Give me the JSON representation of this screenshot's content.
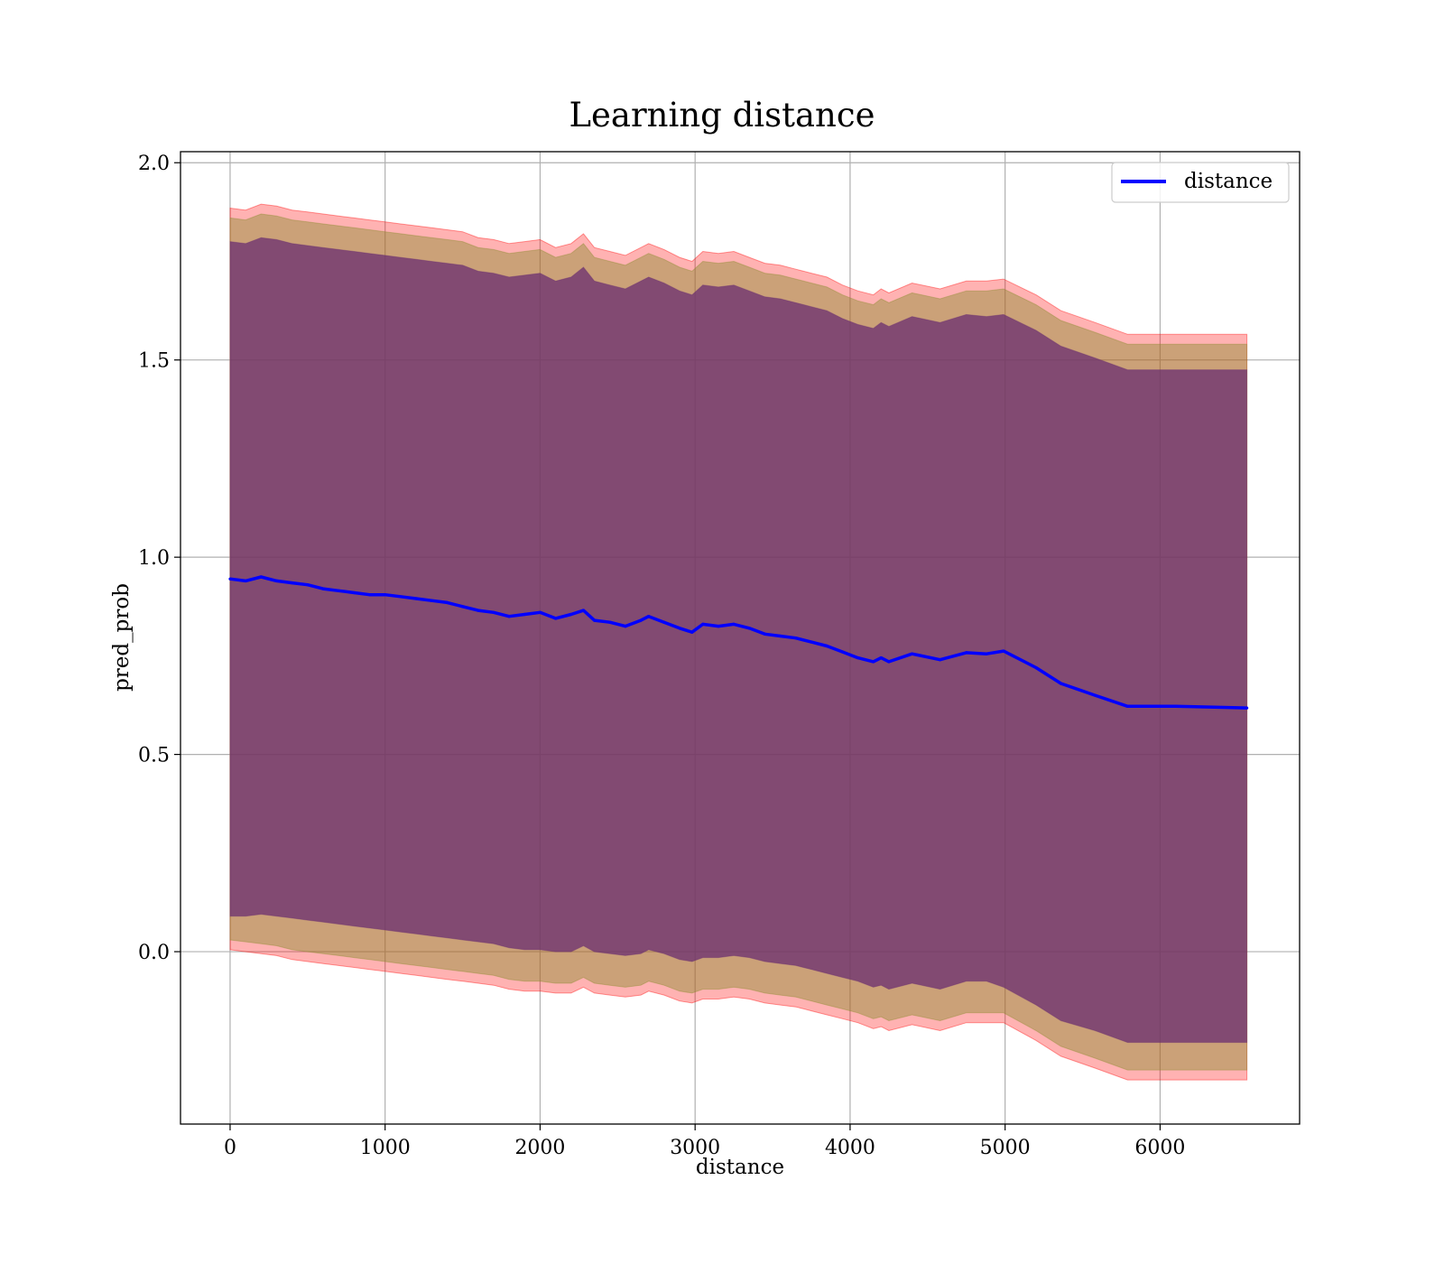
{
  "chart_data": {
    "type": "line",
    "title": "Learning distance",
    "xlabel": "distance",
    "ylabel": "pred_prob",
    "xlim": [
      -320,
      6900
    ],
    "ylim": [
      -0.437,
      2.028
    ],
    "xticks": [
      0,
      1000,
      2000,
      3000,
      4000,
      5000,
      6000
    ],
    "xtick_labels": [
      "0",
      "1000",
      "2000",
      "3000",
      "4000",
      "5000",
      "6000"
    ],
    "yticks": [
      0.0,
      0.5,
      1.0,
      1.5,
      2.0
    ],
    "ytick_labels": [
      "0.0",
      "0.5",
      "1.0",
      "1.5",
      "2.0"
    ],
    "grid": true,
    "legend_position": "top-right",
    "colors": {
      "line": "#0000ff",
      "outer_band": "#ff0000",
      "middle_band": "#8b8b30",
      "inner_band": "#6a2e70"
    },
    "series": [
      {
        "name": "distance",
        "x": [
          0,
          100,
          200,
          300,
          400,
          500,
          600,
          700,
          800,
          900,
          1000,
          1100,
          1200,
          1300,
          1400,
          1500,
          1600,
          1700,
          1800,
          1900,
          2000,
          2100,
          2200,
          2280,
          2350,
          2450,
          2550,
          2650,
          2700,
          2800,
          2900,
          2980,
          3050,
          3150,
          3250,
          3350,
          3450,
          3550,
          3650,
          3750,
          3850,
          3950,
          4050,
          4150,
          4200,
          4250,
          4400,
          4580,
          4750,
          4880,
          4990,
          5200,
          5360,
          5580,
          5790,
          6100,
          6350,
          6560
        ],
        "y": [
          0.945,
          0.94,
          0.95,
          0.94,
          0.935,
          0.93,
          0.92,
          0.915,
          0.91,
          0.905,
          0.905,
          0.9,
          0.895,
          0.89,
          0.885,
          0.875,
          0.865,
          0.86,
          0.85,
          0.855,
          0.86,
          0.845,
          0.855,
          0.865,
          0.84,
          0.835,
          0.825,
          0.84,
          0.85,
          0.835,
          0.82,
          0.81,
          0.83,
          0.825,
          0.83,
          0.82,
          0.805,
          0.8,
          0.795,
          0.785,
          0.775,
          0.76,
          0.745,
          0.735,
          0.745,
          0.735,
          0.755,
          0.74,
          0.758,
          0.755,
          0.762,
          0.72,
          0.68,
          0.65,
          0.622,
          0.622,
          0.62,
          0.618
        ],
        "bands": [
          {
            "lower": [
              0.005,
              0.0,
              -0.005,
              -0.01,
              -0.02,
              -0.025,
              -0.03,
              -0.035,
              -0.04,
              -0.045,
              -0.05,
              -0.055,
              -0.06,
              -0.065,
              -0.07,
              -0.075,
              -0.08,
              -0.085,
              -0.095,
              -0.1,
              -0.1,
              -0.105,
              -0.105,
              -0.09,
              -0.105,
              -0.11,
              -0.115,
              -0.11,
              -0.1,
              -0.11,
              -0.125,
              -0.13,
              -0.12,
              -0.12,
              -0.115,
              -0.12,
              -0.13,
              -0.135,
              -0.14,
              -0.15,
              -0.16,
              -0.17,
              -0.18,
              -0.195,
              -0.19,
              -0.2,
              -0.185,
              -0.2,
              -0.18,
              -0.18,
              -0.18,
              -0.225,
              -0.265,
              -0.295,
              -0.325,
              -0.325,
              -0.325,
              -0.325
            ],
            "upper": [
              1.885,
              1.88,
              1.895,
              1.89,
              1.88,
              1.875,
              1.87,
              1.865,
              1.86,
              1.855,
              1.85,
              1.845,
              1.84,
              1.835,
              1.83,
              1.825,
              1.81,
              1.805,
              1.795,
              1.8,
              1.805,
              1.785,
              1.795,
              1.82,
              1.785,
              1.775,
              1.765,
              1.785,
              1.795,
              1.78,
              1.76,
              1.75,
              1.775,
              1.77,
              1.775,
              1.76,
              1.745,
              1.74,
              1.73,
              1.72,
              1.71,
              1.69,
              1.675,
              1.665,
              1.68,
              1.67,
              1.695,
              1.68,
              1.7,
              1.7,
              1.705,
              1.665,
              1.625,
              1.595,
              1.565,
              1.565,
              1.565,
              1.565
            ]
          },
          {
            "lower": [
              0.03,
              0.025,
              0.02,
              0.015,
              0.005,
              0.0,
              -0.005,
              -0.01,
              -0.015,
              -0.02,
              -0.025,
              -0.03,
              -0.035,
              -0.04,
              -0.045,
              -0.05,
              -0.055,
              -0.06,
              -0.07,
              -0.075,
              -0.075,
              -0.08,
              -0.08,
              -0.065,
              -0.08,
              -0.085,
              -0.09,
              -0.085,
              -0.075,
              -0.085,
              -0.1,
              -0.105,
              -0.095,
              -0.095,
              -0.09,
              -0.095,
              -0.105,
              -0.11,
              -0.115,
              -0.125,
              -0.135,
              -0.145,
              -0.155,
              -0.17,
              -0.165,
              -0.175,
              -0.16,
              -0.175,
              -0.155,
              -0.155,
              -0.155,
              -0.2,
              -0.24,
              -0.27,
              -0.3,
              -0.3,
              -0.3,
              -0.3
            ],
            "upper": [
              1.86,
              1.855,
              1.87,
              1.865,
              1.855,
              1.85,
              1.845,
              1.84,
              1.835,
              1.83,
              1.825,
              1.82,
              1.815,
              1.81,
              1.805,
              1.8,
              1.785,
              1.78,
              1.77,
              1.775,
              1.78,
              1.76,
              1.77,
              1.795,
              1.76,
              1.75,
              1.74,
              1.76,
              1.77,
              1.755,
              1.735,
              1.725,
              1.75,
              1.745,
              1.75,
              1.735,
              1.72,
              1.715,
              1.705,
              1.695,
              1.685,
              1.665,
              1.65,
              1.64,
              1.655,
              1.645,
              1.67,
              1.655,
              1.675,
              1.675,
              1.68,
              1.64,
              1.6,
              1.57,
              1.54,
              1.54,
              1.54,
              1.54
            ]
          },
          {
            "lower": [
              0.09,
              0.09,
              0.095,
              0.09,
              0.085,
              0.08,
              0.075,
              0.07,
              0.065,
              0.06,
              0.055,
              0.05,
              0.045,
              0.04,
              0.035,
              0.03,
              0.025,
              0.02,
              0.01,
              0.005,
              0.005,
              -0.0,
              -0.0,
              0.015,
              -0.0,
              -0.005,
              -0.01,
              -0.005,
              0.005,
              -0.005,
              -0.02,
              -0.025,
              -0.015,
              -0.015,
              -0.01,
              -0.015,
              -0.025,
              -0.03,
              -0.035,
              -0.045,
              -0.055,
              -0.065,
              -0.075,
              -0.09,
              -0.085,
              -0.095,
              -0.08,
              -0.095,
              -0.075,
              -0.075,
              -0.09,
              -0.135,
              -0.175,
              -0.2,
              -0.23,
              -0.23,
              -0.23,
              -0.23
            ],
            "upper": [
              1.8,
              1.795,
              1.81,
              1.805,
              1.795,
              1.79,
              1.785,
              1.78,
              1.775,
              1.77,
              1.765,
              1.76,
              1.755,
              1.75,
              1.745,
              1.74,
              1.725,
              1.72,
              1.71,
              1.715,
              1.72,
              1.7,
              1.71,
              1.735,
              1.7,
              1.69,
              1.68,
              1.7,
              1.71,
              1.695,
              1.675,
              1.665,
              1.69,
              1.685,
              1.69,
              1.675,
              1.66,
              1.655,
              1.645,
              1.635,
              1.625,
              1.605,
              1.59,
              1.58,
              1.595,
              1.585,
              1.61,
              1.595,
              1.615,
              1.61,
              1.615,
              1.575,
              1.535,
              1.505,
              1.475,
              1.475,
              1.475,
              1.475
            ]
          }
        ]
      }
    ],
    "legend": [
      {
        "label": "distance",
        "color": "#0000ff"
      }
    ]
  }
}
